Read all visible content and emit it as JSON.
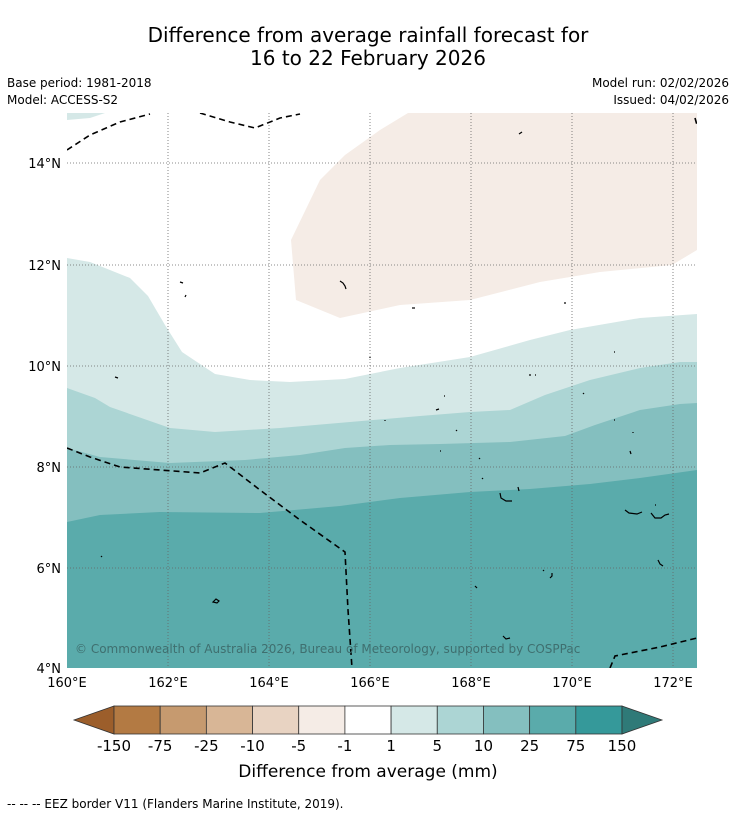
{
  "header": {
    "title_line1": "Difference from average rainfall forecast for",
    "title_line2": "16 to 22 February 2026",
    "base_period": "Base period: 1981-2018",
    "model": "Model: ACCESS-S2",
    "model_run": "Model run: 02/02/2026",
    "issued": "Issued: 04/02/2026"
  },
  "map": {
    "lat_labels": [
      "14°N",
      "12°N",
      "10°N",
      "8°N",
      "6°N",
      "4°N"
    ],
    "lon_labels": [
      "160°E",
      "162°E",
      "164°E",
      "166°E",
      "168°E",
      "170°E",
      "172°E"
    ],
    "copyright": "© Commonwealth of Australia 2026, Bureau of Meteorology, supported by COSPPac"
  },
  "legend": {
    "ticks": [
      "-150",
      "-75",
      "-25",
      "-10",
      "-5",
      "-1",
      "1",
      "5",
      "10",
      "25",
      "75",
      "150"
    ],
    "colors": [
      "#9c5e2b",
      "#b37a43",
      "#c69a6f",
      "#d8b696",
      "#e8d3c2",
      "#f5ece6",
      "#ffffff",
      "#d5e8e7",
      "#acd5d4",
      "#84bfbf",
      "#5aabab",
      "#35999a",
      "#2f7a78"
    ],
    "units_label": "Difference from average (mm)"
  },
  "footer": {
    "eez_note": "--  --  -- EEZ border V11 (Flanders Marine Institute, 2019)."
  }
}
